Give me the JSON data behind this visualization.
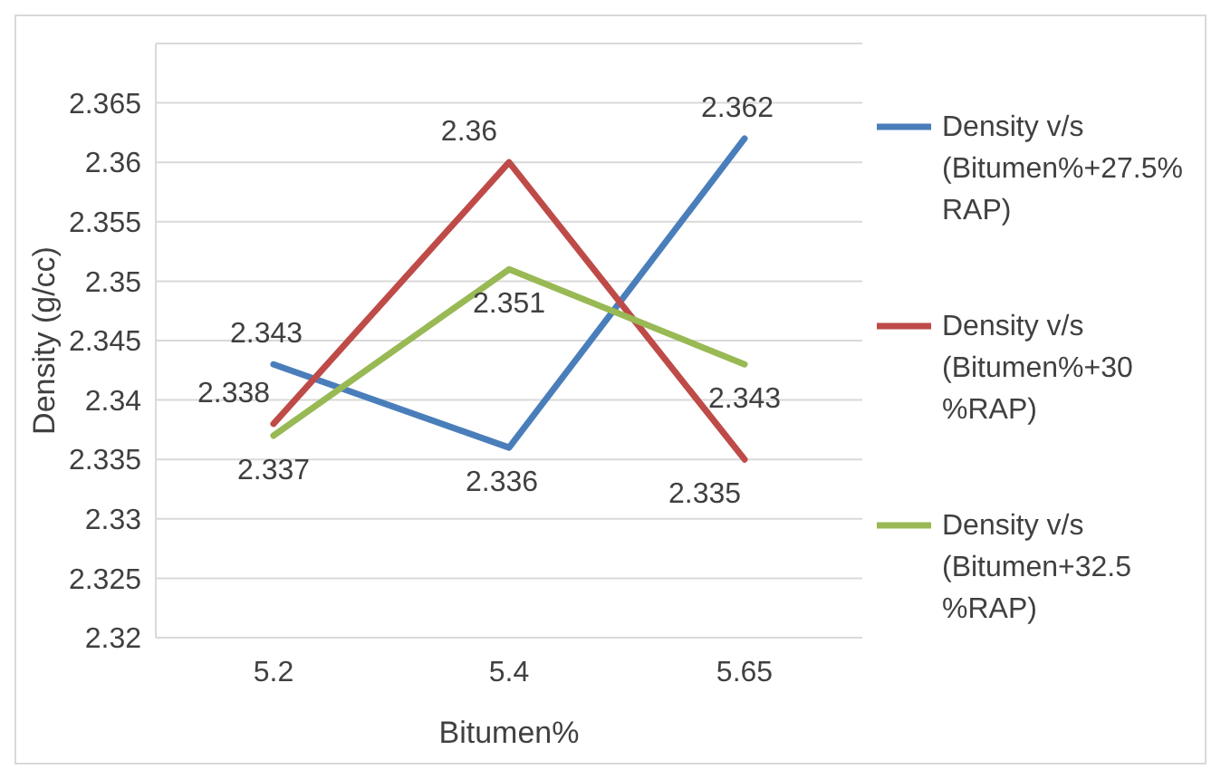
{
  "chart_data": {
    "type": "line",
    "xlabel": "Bitumen%",
    "ylabel": "Density (g/cc)",
    "categories": [
      "5.2",
      "5.4",
      "5.65"
    ],
    "series": [
      {
        "name": "Density v/s (Bitumen%+27.5% RAP)",
        "color": "#4a7ebb",
        "values": [
          2.343,
          2.336,
          2.362
        ]
      },
      {
        "name": "Density v/s (Bitumen%+30 %RAP)",
        "color": "#be4b48",
        "values": [
          2.338,
          2.36,
          2.335
        ]
      },
      {
        "name": "Density v/s (Bitumen+32.5 %RAP)",
        "color": "#98b954",
        "values": [
          2.337,
          2.351,
          2.343
        ]
      }
    ],
    "ylim": [
      2.32,
      2.37
    ],
    "yticks": [
      2.32,
      2.325,
      2.33,
      2.335,
      2.34,
      2.345,
      2.35,
      2.355,
      2.36,
      2.365
    ],
    "grid": "y",
    "legend": "right",
    "data_labels": true,
    "marker": "none",
    "line_style": "solid"
  }
}
